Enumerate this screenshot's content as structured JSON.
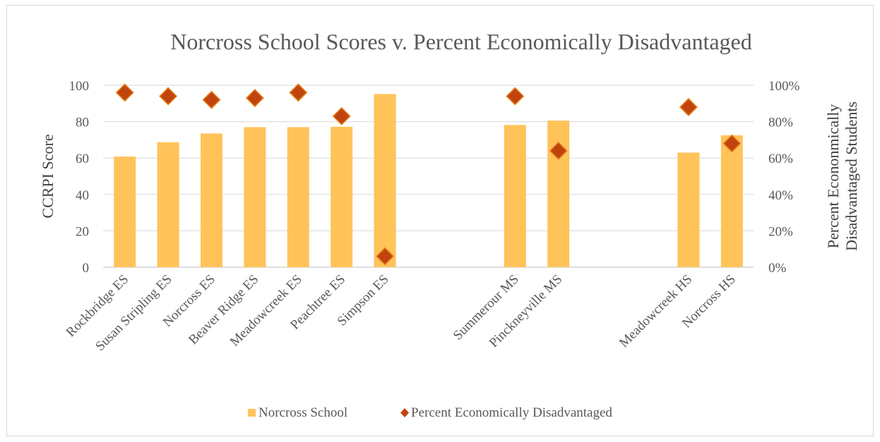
{
  "chart_data": {
    "type": "bar",
    "title": "Norcross School Scores v. Percent Economically Disadvantaged",
    "ylabel": "CCRPI Score",
    "y2label_lines": [
      "Percent  Econonmically",
      "Disadvantaged Students"
    ],
    "ylim": [
      0,
      100
    ],
    "y2lim": [
      0,
      1
    ],
    "yticks": [
      0,
      20,
      40,
      60,
      80,
      100
    ],
    "y2ticks": [
      "0%",
      "20%",
      "40%",
      "60%",
      "80%",
      "100%"
    ],
    "grid": true,
    "legend_position": "bottom",
    "categories": [
      "Rockbridge ES",
      "Susan Stripling ES",
      "Norcross ES",
      "Beaver Ridge ES",
      "Meadowcreek ES",
      "Peachtree ES",
      "Simpson ES",
      "",
      "",
      "Summerour MS",
      "Pinckneyville MS",
      "",
      "",
      "Meadowcreek HS",
      "Norcross HS"
    ],
    "series": [
      {
        "name": "Norcross School",
        "kind": "bar",
        "axis": "left",
        "color": "#ffc35a",
        "values": [
          60.8,
          68.7,
          73.5,
          77.0,
          77.0,
          77.2,
          95.2,
          null,
          null,
          78.2,
          80.6,
          null,
          null,
          63.0,
          72.5
        ]
      },
      {
        "name": "Percent Economically Disadvantaged",
        "kind": "marker",
        "axis": "right",
        "color": "#c1440e",
        "values": [
          0.96,
          0.94,
          0.92,
          0.93,
          0.96,
          0.83,
          0.06,
          null,
          null,
          0.94,
          0.64,
          null,
          null,
          0.88,
          0.68
        ]
      }
    ]
  }
}
